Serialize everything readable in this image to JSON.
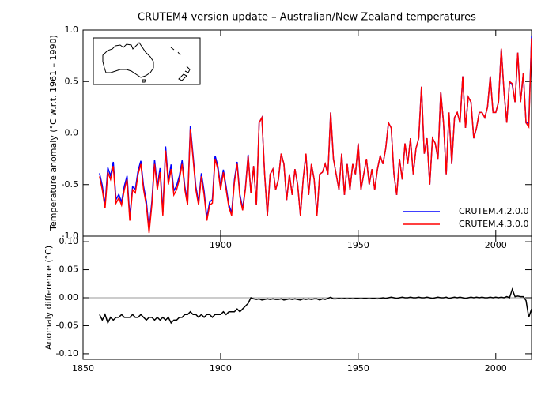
{
  "chart_data": [
    {
      "type": "line",
      "title": "CRUTEM4 version update – Australian/New Zealand temperatures",
      "ylabel": "Temperature anomaly (°C w.r.t. 1961 – 1990)",
      "x": [
        1856,
        1857,
        1858,
        1859,
        1860,
        1861,
        1862,
        1863,
        1864,
        1865,
        1866,
        1867,
        1868,
        1869,
        1870,
        1871,
        1872,
        1873,
        1874,
        1875,
        1876,
        1877,
        1878,
        1879,
        1880,
        1881,
        1882,
        1883,
        1884,
        1885,
        1886,
        1887,
        1888,
        1889,
        1890,
        1891,
        1892,
        1893,
        1894,
        1895,
        1896,
        1897,
        1898,
        1899,
        1900,
        1901,
        1902,
        1903,
        1904,
        1905,
        1906,
        1907,
        1908,
        1909,
        1910,
        1911,
        1912,
        1913,
        1914,
        1915,
        1916,
        1917,
        1918,
        1919,
        1920,
        1921,
        1922,
        1923,
        1924,
        1925,
        1926,
        1927,
        1928,
        1929,
        1930,
        1931,
        1932,
        1933,
        1934,
        1935,
        1936,
        1937,
        1938,
        1939,
        1940,
        1941,
        1942,
        1943,
        1944,
        1945,
        1946,
        1947,
        1948,
        1949,
        1950,
        1951,
        1952,
        1953,
        1954,
        1955,
        1956,
        1957,
        1958,
        1959,
        1960,
        1961,
        1962,
        1963,
        1964,
        1965,
        1966,
        1967,
        1968,
        1969,
        1970,
        1971,
        1972,
        1973,
        1974,
        1975,
        1976,
        1977,
        1978,
        1979,
        1980,
        1981,
        1982,
        1983,
        1984,
        1985,
        1986,
        1987,
        1988,
        1989,
        1990,
        1991,
        1992,
        1993,
        1994,
        1995,
        1996,
        1997,
        1998,
        1999,
        2000,
        2001,
        2002,
        2003,
        2004,
        2005,
        2006,
        2007,
        2008,
        2009,
        2010,
        2011,
        2012,
        2013
      ],
      "series": [
        {
          "name": "CRUTEM.4.2.0.0",
          "color": "#0000ff",
          "values": [
            -0.39,
            -0.51,
            -0.7,
            -0.335,
            -0.415,
            -0.28,
            -0.645,
            -0.595,
            -0.67,
            -0.515,
            -0.415,
            -0.815,
            -0.52,
            -0.545,
            -0.365,
            -0.27,
            -0.515,
            -0.66,
            -0.935,
            -0.665,
            -0.26,
            -0.515,
            -0.34,
            -0.765,
            -0.13,
            -0.465,
            -0.305,
            -0.56,
            -0.51,
            -0.415,
            -0.265,
            -0.52,
            -0.67,
            0.065,
            -0.22,
            -0.52,
            -0.665,
            -0.39,
            -0.565,
            -0.82,
            -0.67,
            -0.645,
            -0.22,
            -0.32,
            -0.52,
            -0.355,
            -0.52,
            -0.695,
            -0.775,
            -0.455,
            -0.28,
            -0.595,
            -0.73,
            -0.535,
            -0.21,
            -0.58,
            -0.32,
            -0.7,
            0.1,
            0.15,
            -0.4,
            -0.8,
            -0.4,
            -0.35,
            -0.55,
            -0.45,
            -0.2,
            -0.3,
            -0.65,
            -0.4,
            -0.6,
            -0.35,
            -0.5,
            -0.8,
            -0.45,
            -0.2,
            -0.6,
            -0.3,
            -0.45,
            -0.8,
            -0.4,
            -0.38,
            -0.3,
            -0.4,
            0.2,
            -0.25,
            -0.4,
            -0.55,
            -0.2,
            -0.6,
            -0.3,
            -0.55,
            -0.3,
            -0.4,
            -0.1,
            -0.55,
            -0.4,
            -0.25,
            -0.5,
            -0.35,
            -0.55,
            -0.35,
            -0.22,
            -0.3,
            -0.15,
            0.1,
            0.05,
            -0.4,
            -0.6,
            -0.25,
            -0.45,
            -0.1,
            -0.3,
            -0.05,
            -0.4,
            -0.15,
            -0.05,
            0.45,
            -0.2,
            -0.05,
            -0.5,
            -0.05,
            -0.1,
            -0.25,
            0.4,
            0.1,
            -0.4,
            0.2,
            -0.3,
            0.15,
            0.2,
            0.1,
            0.55,
            0.05,
            0.35,
            0.3,
            -0.05,
            0.05,
            0.2,
            0.2,
            0.15,
            0.25,
            0.55,
            0.2,
            0.2,
            0.3,
            0.82,
            0.4,
            0.1,
            0.5,
            0.465,
            0.3,
            0.78,
            0.3,
            0.58,
            0.1,
            0.095,
            0.94
          ]
        },
        {
          "name": "CRUTEM.4.3.0.0",
          "color": "#ff0000",
          "values": [
            -0.42,
            -0.55,
            -0.73,
            -0.38,
            -0.45,
            -0.32,
            -0.68,
            -0.63,
            -0.7,
            -0.55,
            -0.45,
            -0.85,
            -0.55,
            -0.58,
            -0.4,
            -0.3,
            -0.55,
            -0.7,
            -0.97,
            -0.7,
            -0.3,
            -0.55,
            -0.38,
            -0.8,
            -0.17,
            -0.5,
            -0.35,
            -0.6,
            -0.55,
            -0.45,
            -0.3,
            -0.55,
            -0.7,
            0.04,
            -0.25,
            -0.55,
            -0.7,
            -0.42,
            -0.6,
            -0.85,
            -0.7,
            -0.68,
            -0.25,
            -0.35,
            -0.55,
            -0.38,
            -0.55,
            -0.72,
            -0.8,
            -0.48,
            -0.3,
            -0.62,
            -0.75,
            -0.55,
            -0.22,
            -0.58,
            -0.32,
            -0.7,
            0.1,
            0.15,
            -0.4,
            -0.8,
            -0.4,
            -0.35,
            -0.55,
            -0.45,
            -0.2,
            -0.3,
            -0.65,
            -0.4,
            -0.6,
            -0.35,
            -0.5,
            -0.8,
            -0.45,
            -0.2,
            -0.6,
            -0.3,
            -0.45,
            -0.8,
            -0.4,
            -0.38,
            -0.3,
            -0.4,
            0.2,
            -0.25,
            -0.4,
            -0.55,
            -0.2,
            -0.6,
            -0.3,
            -0.55,
            -0.3,
            -0.4,
            -0.1,
            -0.55,
            -0.4,
            -0.25,
            -0.5,
            -0.35,
            -0.55,
            -0.35,
            -0.22,
            -0.3,
            -0.15,
            0.1,
            0.05,
            -0.4,
            -0.6,
            -0.25,
            -0.45,
            -0.1,
            -0.3,
            -0.05,
            -0.4,
            -0.15,
            -0.05,
            0.45,
            -0.2,
            -0.05,
            -0.5,
            -0.05,
            -0.1,
            -0.25,
            0.4,
            0.1,
            -0.4,
            0.2,
            -0.3,
            0.15,
            0.2,
            0.1,
            0.55,
            0.05,
            0.35,
            0.3,
            -0.05,
            0.05,
            0.2,
            0.2,
            0.15,
            0.25,
            0.55,
            0.2,
            0.2,
            0.3,
            0.82,
            0.4,
            0.1,
            0.5,
            0.48,
            0.3,
            0.78,
            0.3,
            0.58,
            0.1,
            0.06,
            0.92
          ]
        }
      ],
      "xlim": [
        1850,
        2013
      ],
      "xticks": [
        1900,
        1950,
        2000
      ],
      "ylim": [
        -1,
        1
      ],
      "yticks": [
        {
          "value": -1,
          "label": "-1.0"
        },
        -0.5,
        {
          "value": 0,
          "label": "0.0"
        },
        0.5,
        {
          "value": 1,
          "label": "1.0"
        }
      ],
      "legend": "lower right"
    },
    {
      "type": "line",
      "ylabel": "Anomaly difference (°C)",
      "x": [
        1856,
        1857,
        1858,
        1859,
        1860,
        1861,
        1862,
        1863,
        1864,
        1865,
        1866,
        1867,
        1868,
        1869,
        1870,
        1871,
        1872,
        1873,
        1874,
        1875,
        1876,
        1877,
        1878,
        1879,
        1880,
        1881,
        1882,
        1883,
        1884,
        1885,
        1886,
        1887,
        1888,
        1889,
        1890,
        1891,
        1892,
        1893,
        1894,
        1895,
        1896,
        1897,
        1898,
        1899,
        1900,
        1901,
        1902,
        1903,
        1904,
        1905,
        1906,
        1907,
        1908,
        1909,
        1910,
        1911,
        1912,
        1913,
        1914,
        1915,
        1916,
        1917,
        1918,
        1919,
        1920,
        1921,
        1922,
        1923,
        1924,
        1925,
        1926,
        1927,
        1928,
        1929,
        1930,
        1931,
        1932,
        1933,
        1934,
        1935,
        1936,
        1937,
        1938,
        1939,
        1940,
        1941,
        1942,
        1943,
        1944,
        1945,
        1946,
        1947,
        1948,
        1949,
        1950,
        1951,
        1952,
        1953,
        1954,
        1955,
        1956,
        1957,
        1958,
        1959,
        1960,
        1961,
        1962,
        1963,
        1964,
        1965,
        1966,
        1967,
        1968,
        1969,
        1970,
        1971,
        1972,
        1973,
        1974,
        1975,
        1976,
        1977,
        1978,
        1979,
        1980,
        1981,
        1982,
        1983,
        1984,
        1985,
        1986,
        1987,
        1988,
        1989,
        1990,
        1991,
        1992,
        1993,
        1994,
        1995,
        1996,
        1997,
        1998,
        1999,
        2000,
        2001,
        2002,
        2003,
        2004,
        2005,
        2006,
        2007,
        2008,
        2009,
        2010,
        2011,
        2012,
        2013
      ],
      "series": [
        {
          "color": "#000000",
          "values": [
            -0.03,
            -0.04,
            -0.03,
            -0.045,
            -0.035,
            -0.04,
            -0.035,
            -0.035,
            -0.03,
            -0.035,
            -0.035,
            -0.035,
            -0.03,
            -0.035,
            -0.035,
            -0.03,
            -0.035,
            -0.04,
            -0.035,
            -0.035,
            -0.04,
            -0.035,
            -0.04,
            -0.035,
            -0.04,
            -0.035,
            -0.045,
            -0.04,
            -0.04,
            -0.035,
            -0.035,
            -0.03,
            -0.03,
            -0.025,
            -0.03,
            -0.03,
            -0.035,
            -0.03,
            -0.035,
            -0.03,
            -0.03,
            -0.035,
            -0.03,
            -0.03,
            -0.03,
            -0.025,
            -0.03,
            -0.025,
            -0.025,
            -0.025,
            -0.02,
            -0.025,
            -0.02,
            -0.015,
            -0.01,
            0,
            -0.002,
            -0.003,
            -0.002,
            -0.004,
            -0.003,
            -0.002,
            -0.003,
            -0.002,
            -0.003,
            -0.003,
            -0.002,
            -0.004,
            -0.003,
            -0.002,
            -0.003,
            -0.002,
            -0.003,
            -0.004,
            -0.002,
            -0.003,
            -0.002,
            -0.003,
            -0.002,
            -0.002,
            -0.004,
            -0.002,
            -0.003,
            -0.001,
            0.001,
            -0.002,
            -0.002,
            -0.001,
            -0.002,
            -0.001,
            -0.002,
            -0.001,
            -0.002,
            -0.001,
            -0.001,
            -0.002,
            -0.001,
            -0.001,
            -0.002,
            -0.001,
            -0.001,
            -0.002,
            -0.001,
            0,
            -0.001,
            0,
            0.001,
            0,
            -0.001,
            0,
            0.001,
            0,
            0,
            0.001,
            0,
            0,
            0.001,
            0,
            0,
            0.001,
            0,
            -0.001,
            0,
            0.001,
            0,
            0,
            0.001,
            -0.001,
            0,
            0.001,
            0,
            0.001,
            0,
            -0.001,
            0,
            0.001,
            0,
            0.001,
            0,
            0.001,
            0,
            0,
            0.001,
            0,
            0.001,
            0,
            0.001,
            0,
            0.002,
            0,
            0.015,
            0.002,
            0.003,
            0.002,
            0.002,
            -0.005,
            -0.035,
            -0.02
          ]
        }
      ],
      "xlim": [
        1850,
        2013
      ],
      "xticks": [
        1850,
        1900,
        1950,
        2000
      ],
      "ylim": [
        -0.11,
        0.11
      ],
      "yticks": [
        {
          "value": -0.1,
          "label": "-0.10"
        },
        {
          "value": -0.05,
          "label": "-0.05"
        },
        {
          "value": 0,
          "label": "0.00"
        },
        {
          "value": 0.05,
          "label": "0.05"
        },
        {
          "value": 0.1,
          "label": "0.10"
        }
      ]
    }
  ]
}
